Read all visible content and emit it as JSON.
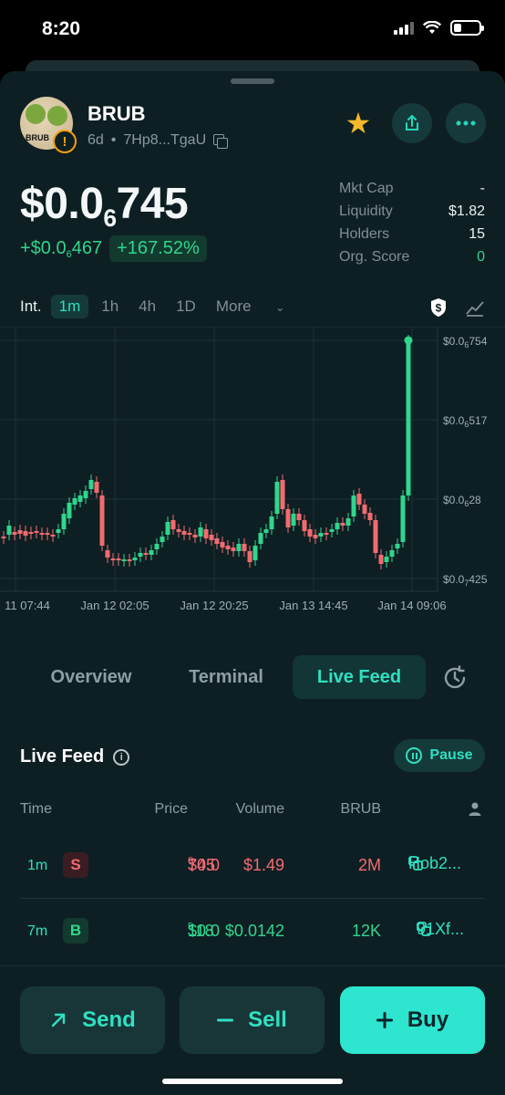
{
  "status": {
    "time": "8:20"
  },
  "token": {
    "name": "BRUB",
    "age": "6d",
    "address": "7Hp8...TgaU",
    "avatar_text": "BRUB"
  },
  "price": {
    "main": "$0.0",
    "sub_zeros": "6",
    "tail": "745"
  },
  "change": {
    "abs_main": "+$0.0",
    "abs_sub": "6",
    "abs_tail": "467",
    "pct": "+167.52%"
  },
  "stats": [
    {
      "key": "Mkt Cap",
      "value": "-"
    },
    {
      "key": "Liquidity",
      "value": "$1.82"
    },
    {
      "key": "Holders",
      "value": "15"
    },
    {
      "key": "Org. Score",
      "value": "0"
    }
  ],
  "intervals": {
    "label": "Int.",
    "options": [
      "1m",
      "1h",
      "4h",
      "1D"
    ],
    "active": "1m",
    "more": "More"
  },
  "chart_data": {
    "type": "candlestick",
    "y_ticks": [
      {
        "main": "$0.0",
        "sub": "6",
        "tail": "754"
      },
      {
        "main": "$0.0",
        "sub": "6",
        "tail": "517"
      },
      {
        "main": "$0.0",
        "sub": "6",
        "tail": "28"
      },
      {
        "main": "$0.0",
        "sub": "7",
        "tail": "425"
      }
    ],
    "x_ticks": [
      "11 07:44",
      "Jan 12 02:05",
      "Jan 12 20:25",
      "Jan 13 14:45",
      "Jan 14 09:06"
    ],
    "ylim": [
      4.25e-08,
      7.54e-07
    ],
    "last_value": 7.45e-07,
    "colors": {
      "up": "#2fd68c",
      "down": "#f26b71"
    }
  },
  "tabs": [
    "Overview",
    "Terminal",
    "Live Feed"
  ],
  "live_feed": {
    "title": "Live Feed",
    "pause_label": "Pause",
    "columns": [
      "Time",
      "Price",
      "Volume",
      "BRUB"
    ],
    "rows": [
      {
        "age": "1m",
        "side": "S",
        "price_main": "$0.0",
        "price_sub": "6",
        "price_tail": "745",
        "volume": "$1.49",
        "amount": "2M",
        "maker": "Hob2..."
      },
      {
        "age": "7m",
        "side": "B",
        "price_main": "$0.0",
        "price_sub": "5",
        "price_tail": "118",
        "volume": "$0.0142",
        "amount": "12K",
        "maker": "91Xf..."
      }
    ]
  },
  "actions": {
    "send": "Send",
    "sell": "Sell",
    "buy": "Buy"
  }
}
